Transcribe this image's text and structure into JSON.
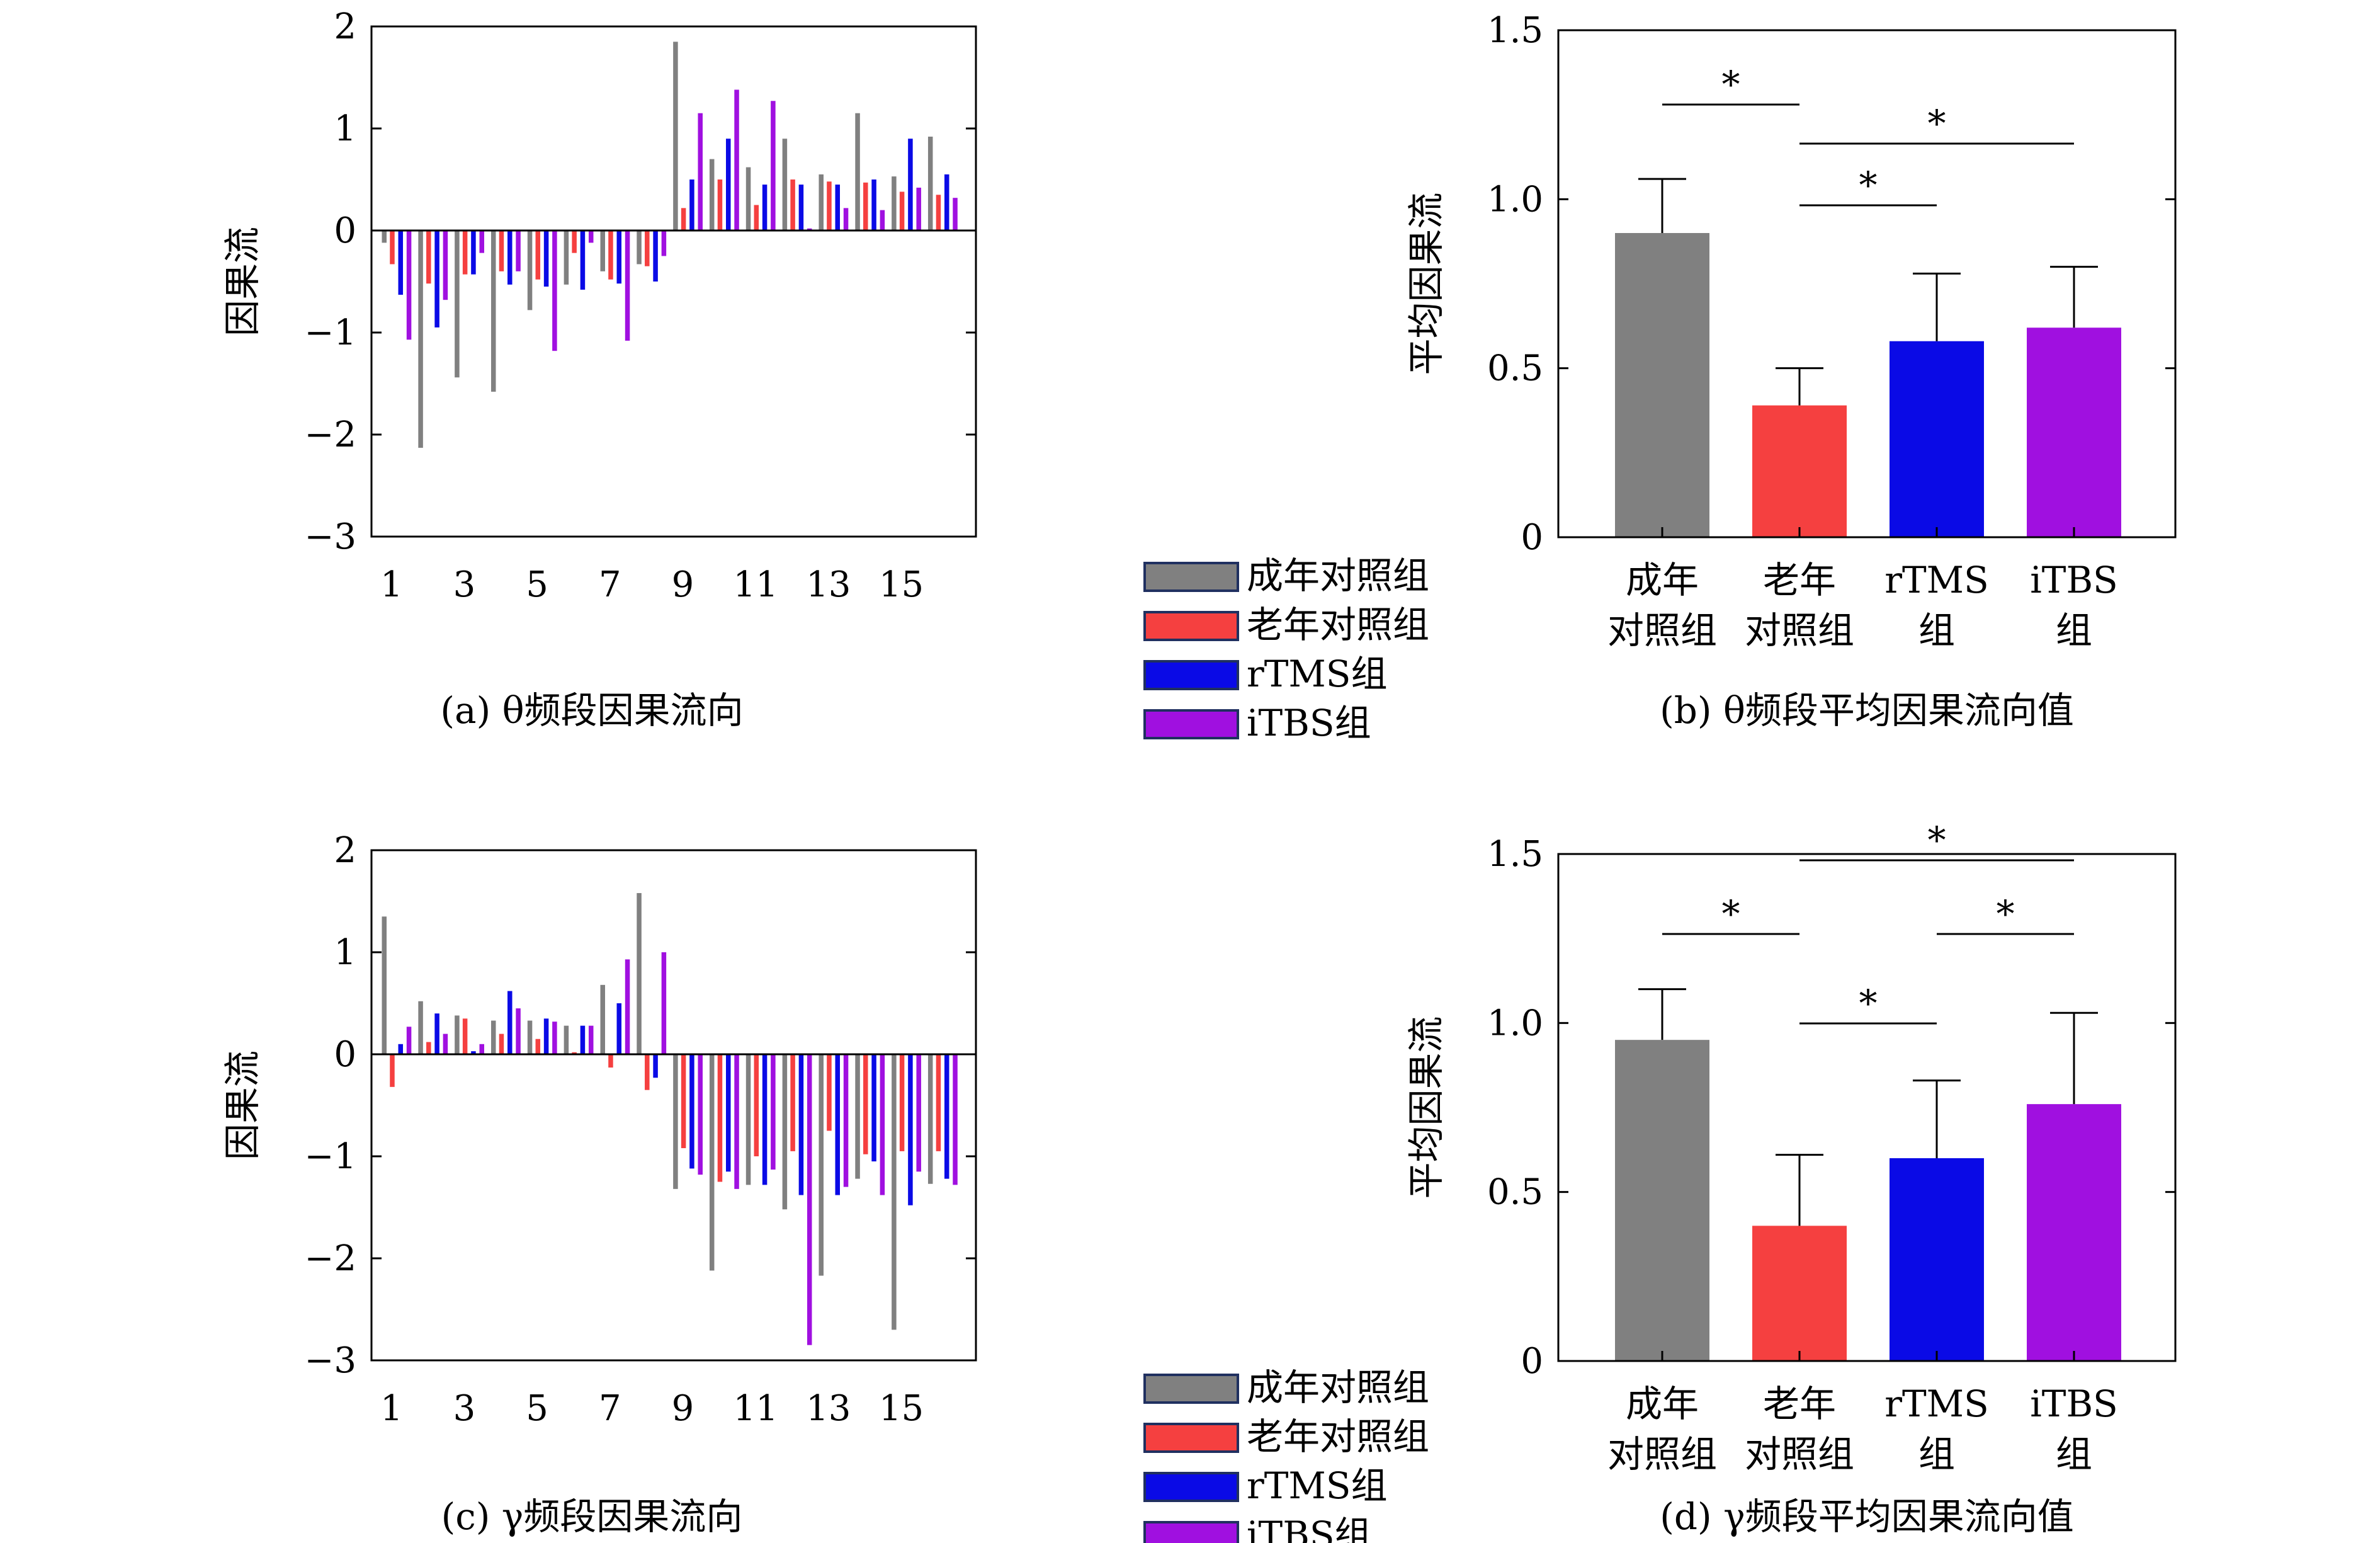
{
  "colors": {
    "adult": "#808080",
    "old": "#f54040",
    "rtms": "#0a0ae6",
    "itbs": "#a010e0"
  },
  "legend": [
    {
      "label": "成年对照组",
      "color": "#808080"
    },
    {
      "label": "老年对照组",
      "color": "#f54040"
    },
    {
      "label": "rTMS组",
      "color": "#0a0ae6"
    },
    {
      "label": "iTBS组",
      "color": "#a010e0"
    }
  ],
  "chart_data": [
    {
      "id": "a",
      "type": "bar",
      "caption": "(a) θ频段因果流向",
      "ylabel": "因果流",
      "ylim": [
        -3,
        2
      ],
      "yticks": [
        "2",
        "1",
        "0",
        "−1",
        "−2",
        "−3"
      ],
      "xticks": [
        "1",
        "3",
        "5",
        "7",
        "9",
        "11",
        "13",
        "15"
      ],
      "x": [
        1,
        2,
        3,
        4,
        5,
        6,
        7,
        8,
        9,
        10,
        11,
        12,
        13,
        14,
        15,
        16
      ],
      "series": [
        {
          "name": "成年对照组",
          "values": [
            -0.12,
            -2.13,
            -1.44,
            -1.58,
            -0.78,
            -0.53,
            -0.4,
            -0.33,
            1.85,
            0.7,
            0.62,
            0.9,
            0.55,
            1.15,
            0.53,
            0.92
          ]
        },
        {
          "name": "老年对照组",
          "values": [
            -0.33,
            -0.52,
            -0.43,
            -0.4,
            -0.48,
            -0.22,
            -0.48,
            -0.35,
            0.22,
            0.5,
            0.25,
            0.5,
            0.48,
            0.47,
            0.38,
            0.35
          ]
        },
        {
          "name": "rTMS组",
          "values": [
            -0.63,
            -0.95,
            -0.43,
            -0.53,
            -0.55,
            -0.58,
            -0.52,
            -0.5,
            0.5,
            0.9,
            0.45,
            0.45,
            0.45,
            0.5,
            0.9,
            0.55
          ]
        },
        {
          "name": "iTBS组",
          "values": [
            -1.07,
            -0.68,
            -0.22,
            -0.4,
            -1.18,
            -0.12,
            -1.08,
            -0.25,
            1.15,
            1.38,
            1.27,
            0.02,
            0.22,
            0.2,
            0.42,
            0.32
          ]
        }
      ]
    },
    {
      "id": "b",
      "type": "bar",
      "caption": "(b) θ频段平均因果流向值",
      "ylabel": "平均因果流",
      "ylim": [
        0,
        1.5
      ],
      "yticks": [
        "1.5",
        "1.0",
        "0.5",
        "0"
      ],
      "categories": [
        [
          "成年",
          "对照组"
        ],
        [
          "老年",
          "对照组"
        ],
        [
          "rTMS",
          "组"
        ],
        [
          "iTBS",
          "组"
        ]
      ],
      "values": [
        0.9,
        0.39,
        0.58,
        0.62
      ],
      "errors": [
        0.16,
        0.11,
        0.2,
        0.18
      ],
      "significance": [
        {
          "from": 0,
          "to": 1,
          "label": "*"
        },
        {
          "from": 1,
          "to": 3,
          "label": "*"
        },
        {
          "from": 1,
          "to": 2,
          "label": "*"
        }
      ]
    },
    {
      "id": "c",
      "type": "bar",
      "caption": "(c) γ频段因果流向",
      "ylabel": "因果流",
      "ylim": [
        -3,
        2
      ],
      "yticks": [
        "2",
        "1",
        "0",
        "−1",
        "−2",
        "−3"
      ],
      "xticks": [
        "1",
        "3",
        "5",
        "7",
        "9",
        "11",
        "13",
        "15"
      ],
      "x": [
        1,
        2,
        3,
        4,
        5,
        6,
        7,
        8,
        9,
        10,
        11,
        12,
        13,
        14,
        15,
        16
      ],
      "series": [
        {
          "name": "成年对照组",
          "values": [
            1.35,
            0.52,
            0.38,
            0.33,
            0.33,
            0.28,
            0.68,
            1.58,
            -1.32,
            -2.12,
            -1.28,
            -1.52,
            -2.17,
            -1.22,
            -2.7,
            -1.27
          ]
        },
        {
          "name": "老年对照组",
          "values": [
            -0.32,
            0.12,
            0.35,
            0.2,
            0.15,
            0.02,
            -0.13,
            -0.35,
            -0.92,
            -1.25,
            -1.0,
            -0.95,
            -0.75,
            -0.98,
            -0.95,
            -0.95
          ]
        },
        {
          "name": "rTMS组",
          "values": [
            0.1,
            0.4,
            0.03,
            0.62,
            0.35,
            0.28,
            0.5,
            -0.23,
            -1.12,
            -1.15,
            -1.28,
            -1.38,
            -1.38,
            -1.05,
            -1.48,
            -1.22
          ]
        },
        {
          "name": "iTBS组",
          "values": [
            0.27,
            0.2,
            0.1,
            0.45,
            0.32,
            0.28,
            0.93,
            1.0,
            -1.18,
            -1.32,
            -1.13,
            -2.85,
            -1.3,
            -1.38,
            -1.15,
            -1.28
          ]
        }
      ]
    },
    {
      "id": "d",
      "type": "bar",
      "caption": "(d) γ频段平均因果流向值",
      "ylabel": "平均因果流",
      "ylim": [
        0,
        1.5
      ],
      "yticks": [
        "1.5",
        "1.0",
        "0.5",
        "0"
      ],
      "categories": [
        [
          "成年",
          "对照组"
        ],
        [
          "老年",
          "对照组"
        ],
        [
          "rTMS",
          "组"
        ],
        [
          "iTBS",
          "组"
        ]
      ],
      "values": [
        0.95,
        0.4,
        0.6,
        0.76
      ],
      "errors": [
        0.15,
        0.21,
        0.23,
        0.27
      ],
      "significance": [
        {
          "from": 1,
          "to": 3,
          "label": "*"
        },
        {
          "from": 0,
          "to": 1,
          "label": "*"
        },
        {
          "from": 2,
          "to": 3,
          "label": "*"
        },
        {
          "from": 1,
          "to": 2,
          "label": "*"
        }
      ]
    }
  ]
}
